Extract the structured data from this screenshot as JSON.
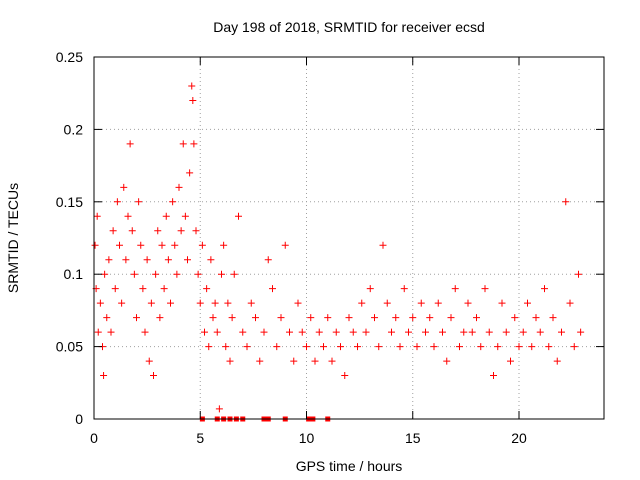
{
  "chart_data": {
    "type": "scatter",
    "title": "Day 198 of 2018, SRMTID for receiver ecsd",
    "xlabel": "GPS time / hours",
    "ylabel": "SRMTID / TECUs",
    "xlim": [
      0,
      24
    ],
    "ylim": [
      0,
      0.25
    ],
    "xticks": [
      0,
      5,
      10,
      15,
      20
    ],
    "xtick_labels": [
      "0",
      "5",
      "10",
      "15",
      "20"
    ],
    "yticks": [
      0,
      0.05,
      0.1,
      0.15,
      0.2,
      0.25
    ],
    "ytick_labels": [
      "0",
      "0.05",
      "0.1",
      "0.15",
      "0.2",
      "0.25"
    ],
    "grid": true,
    "marker": "plus",
    "color": "#ff0000",
    "series": [
      {
        "name": "SRMTID",
        "points": [
          [
            0.05,
            0.12
          ],
          [
            0.1,
            0.09
          ],
          [
            0.15,
            0.14
          ],
          [
            0.2,
            0.06
          ],
          [
            0.3,
            0.08
          ],
          [
            0.4,
            0.05
          ],
          [
            0.45,
            0.03
          ],
          [
            0.5,
            0.1
          ],
          [
            0.6,
            0.07
          ],
          [
            0.7,
            0.11
          ],
          [
            0.8,
            0.06
          ],
          [
            0.9,
            0.13
          ],
          [
            1.0,
            0.09
          ],
          [
            1.1,
            0.15
          ],
          [
            1.2,
            0.12
          ],
          [
            1.3,
            0.08
          ],
          [
            1.4,
            0.16
          ],
          [
            1.5,
            0.11
          ],
          [
            1.6,
            0.14
          ],
          [
            1.7,
            0.19
          ],
          [
            1.8,
            0.13
          ],
          [
            1.9,
            0.1
          ],
          [
            2.0,
            0.07
          ],
          [
            2.1,
            0.15
          ],
          [
            2.2,
            0.12
          ],
          [
            2.3,
            0.09
          ],
          [
            2.4,
            0.06
          ],
          [
            2.5,
            0.11
          ],
          [
            2.6,
            0.04
          ],
          [
            2.7,
            0.08
          ],
          [
            2.8,
            0.03
          ],
          [
            2.9,
            0.1
          ],
          [
            3.0,
            0.13
          ],
          [
            3.1,
            0.07
          ],
          [
            3.2,
            0.12
          ],
          [
            3.3,
            0.09
          ],
          [
            3.4,
            0.14
          ],
          [
            3.5,
            0.11
          ],
          [
            3.6,
            0.08
          ],
          [
            3.7,
            0.15
          ],
          [
            3.8,
            0.12
          ],
          [
            3.9,
            0.1
          ],
          [
            4.0,
            0.16
          ],
          [
            4.1,
            0.13
          ],
          [
            4.2,
            0.19
          ],
          [
            4.3,
            0.14
          ],
          [
            4.4,
            0.11
          ],
          [
            4.5,
            0.17
          ],
          [
            4.6,
            0.23
          ],
          [
            4.65,
            0.22
          ],
          [
            4.7,
            0.19
          ],
          [
            4.8,
            0.13
          ],
          [
            4.9,
            0.1
          ],
          [
            5.0,
            0.08
          ],
          [
            5.1,
            0.12
          ],
          [
            5.2,
            0.06
          ],
          [
            5.3,
            0.09
          ],
          [
            5.4,
            0.05
          ],
          [
            5.5,
            0.11
          ],
          [
            5.6,
            0.07
          ],
          [
            5.7,
            0.08
          ],
          [
            5.8,
            0.06
          ],
          [
            5.9,
            0.007
          ],
          [
            6.0,
            0.1
          ],
          [
            6.1,
            0.12
          ],
          [
            6.2,
            0.05
          ],
          [
            6.3,
            0.08
          ],
          [
            6.4,
            0.04
          ],
          [
            6.5,
            0.07
          ],
          [
            6.6,
            0.1
          ],
          [
            6.8,
            0.14
          ],
          [
            7.0,
            0.06
          ],
          [
            7.2,
            0.05
          ],
          [
            7.4,
            0.08
          ],
          [
            7.6,
            0.07
          ],
          [
            7.8,
            0.04
          ],
          [
            8.0,
            0.06
          ],
          [
            8.2,
            0.11
          ],
          [
            8.4,
            0.09
          ],
          [
            8.6,
            0.05
          ],
          [
            8.8,
            0.07
          ],
          [
            9.0,
            0.12
          ],
          [
            9.2,
            0.06
          ],
          [
            9.4,
            0.04
          ],
          [
            9.6,
            0.08
          ],
          [
            9.8,
            0.06
          ],
          [
            10.0,
            0.05
          ],
          [
            10.2,
            0.07
          ],
          [
            10.4,
            0.04
          ],
          [
            10.6,
            0.06
          ],
          [
            10.8,
            0.05
          ],
          [
            11.0,
            0.07
          ],
          [
            11.2,
            0.04
          ],
          [
            11.4,
            0.06
          ],
          [
            11.6,
            0.05
          ],
          [
            11.8,
            0.03
          ],
          [
            12.0,
            0.07
          ],
          [
            12.2,
            0.06
          ],
          [
            12.4,
            0.05
          ],
          [
            12.6,
            0.08
          ],
          [
            12.8,
            0.06
          ],
          [
            13.0,
            0.09
          ],
          [
            13.2,
            0.07
          ],
          [
            13.4,
            0.05
          ],
          [
            13.6,
            0.12
          ],
          [
            13.8,
            0.08
          ],
          [
            14.0,
            0.06
          ],
          [
            14.2,
            0.07
          ],
          [
            14.4,
            0.05
          ],
          [
            14.6,
            0.09
          ],
          [
            14.8,
            0.06
          ],
          [
            15.0,
            0.07
          ],
          [
            15.2,
            0.05
          ],
          [
            15.4,
            0.08
          ],
          [
            15.6,
            0.06
          ],
          [
            15.8,
            0.07
          ],
          [
            16.0,
            0.05
          ],
          [
            16.2,
            0.08
          ],
          [
            16.4,
            0.06
          ],
          [
            16.6,
            0.04
          ],
          [
            16.8,
            0.07
          ],
          [
            17.0,
            0.09
          ],
          [
            17.2,
            0.05
          ],
          [
            17.4,
            0.06
          ],
          [
            17.6,
            0.08
          ],
          [
            17.8,
            0.06
          ],
          [
            18.0,
            0.07
          ],
          [
            18.2,
            0.05
          ],
          [
            18.4,
            0.09
          ],
          [
            18.6,
            0.06
          ],
          [
            18.8,
            0.03
          ],
          [
            19.0,
            0.05
          ],
          [
            19.2,
            0.08
          ],
          [
            19.4,
            0.06
          ],
          [
            19.6,
            0.04
          ],
          [
            19.8,
            0.07
          ],
          [
            20.0,
            0.05
          ],
          [
            20.2,
            0.06
          ],
          [
            20.4,
            0.08
          ],
          [
            20.6,
            0.05
          ],
          [
            20.8,
            0.07
          ],
          [
            21.0,
            0.06
          ],
          [
            21.2,
            0.09
          ],
          [
            21.4,
            0.05
          ],
          [
            21.6,
            0.07
          ],
          [
            21.8,
            0.04
          ],
          [
            22.0,
            0.06
          ],
          [
            22.2,
            0.15
          ],
          [
            22.4,
            0.08
          ],
          [
            22.6,
            0.05
          ],
          [
            22.8,
            0.1
          ],
          [
            22.9,
            0.06
          ]
        ]
      }
    ],
    "zero_points_x": [
      5.1,
      5.8,
      6.1,
      6.4,
      6.7,
      7.0,
      8.0,
      8.2,
      9.0,
      10.1,
      10.3,
      11.0
    ]
  }
}
